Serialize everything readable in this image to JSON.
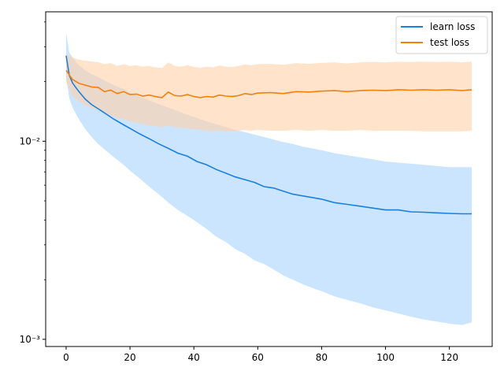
{
  "chart_data": {
    "type": "line",
    "title": "",
    "xlabel": "",
    "ylabel": "",
    "xlim": [
      -6.4,
      133.4
    ],
    "ylim": [
      0.00092,
      0.045
    ],
    "yscale": "log",
    "x_ticks": [
      0,
      20,
      40,
      60,
      80,
      100,
      120
    ],
    "x_tick_labels": [
      "0",
      "20",
      "40",
      "60",
      "80",
      "100",
      "120"
    ],
    "y_ticks": [
      0.001,
      0.01
    ],
    "y_tick_labels": [
      "10⁻³",
      "10⁻²"
    ],
    "grid": false,
    "legend_position": "upper-right",
    "series": [
      {
        "name": "learn loss",
        "color": "#1f77b4",
        "line_color": "#1a80e0",
        "band_color": "#a9d3ff",
        "x": [
          0,
          1,
          2,
          3,
          4,
          6,
          8,
          10,
          12,
          15,
          18,
          20,
          23,
          26,
          29,
          32,
          35,
          38,
          41,
          44,
          47,
          50,
          53,
          56,
          59,
          62,
          65,
          68,
          71,
          74,
          77,
          80,
          84,
          88,
          92,
          96,
          100,
          104,
          108,
          112,
          116,
          120,
          124,
          127
        ],
        "mean": [
          0.027,
          0.0215,
          0.0197,
          0.0187,
          0.0178,
          0.0163,
          0.0153,
          0.0146,
          0.0139,
          0.0129,
          0.0121,
          0.0116,
          0.0109,
          0.0103,
          0.0097,
          0.0092,
          0.0087,
          0.0084,
          0.0079,
          0.0076,
          0.0072,
          0.0069,
          0.0066,
          0.0064,
          0.0062,
          0.0059,
          0.0058,
          0.0056,
          0.0054,
          0.0053,
          0.0052,
          0.0051,
          0.0049,
          0.0048,
          0.0047,
          0.0046,
          0.0045,
          0.0045,
          0.0044,
          0.00438,
          0.00435,
          0.00432,
          0.0043,
          0.0043
        ],
        "lower": [
          0.021,
          0.0165,
          0.0148,
          0.0138,
          0.0129,
          0.0115,
          0.0105,
          0.0097,
          0.0091,
          0.0083,
          0.0076,
          0.0071,
          0.0065,
          0.0059,
          0.0054,
          0.0049,
          0.0045,
          0.0042,
          0.0039,
          0.0036,
          0.0033,
          0.0031,
          0.00285,
          0.0027,
          0.0025,
          0.0024,
          0.00225,
          0.0021,
          0.002,
          0.0019,
          0.00182,
          0.00175,
          0.00165,
          0.00158,
          0.00152,
          0.00145,
          0.0014,
          0.00135,
          0.0013,
          0.00126,
          0.00123,
          0.0012,
          0.00118,
          0.00122
        ],
        "upper": [
          0.035,
          0.028,
          0.0265,
          0.0252,
          0.0242,
          0.0228,
          0.0218,
          0.0211,
          0.0203,
          0.0192,
          0.0183,
          0.0176,
          0.0168,
          0.0161,
          0.0154,
          0.0148,
          0.0142,
          0.0136,
          0.0131,
          0.0126,
          0.0122,
          0.0118,
          0.0114,
          0.0111,
          0.0108,
          0.0105,
          0.0102,
          0.0099,
          0.0097,
          0.0094,
          0.0092,
          0.009,
          0.0087,
          0.0085,
          0.0083,
          0.0081,
          0.0079,
          0.0078,
          0.0077,
          0.0076,
          0.0075,
          0.0074,
          0.0074,
          0.0074
        ]
      },
      {
        "name": "test loss",
        "color": "#ff7f0e",
        "line_color": "#f5800a",
        "band_color": "#ffd0a8",
        "x": [
          0,
          2,
          4,
          6,
          8,
          10,
          12,
          14,
          16,
          18,
          20,
          22,
          24,
          26,
          28,
          30,
          32,
          34,
          36,
          38,
          40,
          42,
          44,
          46,
          48,
          50,
          52,
          54,
          56,
          58,
          60,
          64,
          68,
          72,
          76,
          80,
          84,
          88,
          92,
          96,
          100,
          104,
          108,
          112,
          116,
          120,
          124,
          127
        ],
        "mean": [
          0.0228,
          0.0205,
          0.0196,
          0.0192,
          0.0188,
          0.0187,
          0.0178,
          0.0181,
          0.0174,
          0.0178,
          0.0172,
          0.0173,
          0.0169,
          0.0171,
          0.0168,
          0.0166,
          0.0177,
          0.017,
          0.0169,
          0.0172,
          0.0168,
          0.0166,
          0.0168,
          0.0167,
          0.0171,
          0.0169,
          0.0168,
          0.017,
          0.0174,
          0.0172,
          0.0175,
          0.0176,
          0.0174,
          0.0178,
          0.0177,
          0.0179,
          0.018,
          0.0178,
          0.018,
          0.0181,
          0.018,
          0.0182,
          0.0181,
          0.0182,
          0.0181,
          0.0182,
          0.018,
          0.0182
        ],
        "lower": [
          0.0198,
          0.017,
          0.0158,
          0.0152,
          0.0147,
          0.0143,
          0.0138,
          0.0135,
          0.0131,
          0.0129,
          0.0126,
          0.0124,
          0.0122,
          0.012,
          0.0119,
          0.0118,
          0.012,
          0.0118,
          0.0117,
          0.0116,
          0.0115,
          0.0114,
          0.0113,
          0.0112,
          0.0113,
          0.0112,
          0.0112,
          0.0113,
          0.0114,
          0.0113,
          0.0114,
          0.0113,
          0.0113,
          0.0114,
          0.0113,
          0.0114,
          0.0113,
          0.0113,
          0.0114,
          0.0113,
          0.0113,
          0.0113,
          0.0113,
          0.0112,
          0.0112,
          0.0112,
          0.0112,
          0.0113
        ],
        "upper": [
          0.0275,
          0.0265,
          0.0258,
          0.0255,
          0.0252,
          0.0251,
          0.0245,
          0.0248,
          0.024,
          0.0245,
          0.024,
          0.0242,
          0.0238,
          0.024,
          0.0236,
          0.0234,
          0.025,
          0.024,
          0.0238,
          0.0242,
          0.0237,
          0.0235,
          0.0238,
          0.0236,
          0.0241,
          0.0238,
          0.0237,
          0.024,
          0.0244,
          0.0242,
          0.0245,
          0.0246,
          0.0243,
          0.0248,
          0.0246,
          0.0249,
          0.025,
          0.0247,
          0.025,
          0.0251,
          0.025,
          0.0252,
          0.0251,
          0.0252,
          0.0251,
          0.0252,
          0.025,
          0.0252
        ]
      }
    ]
  }
}
